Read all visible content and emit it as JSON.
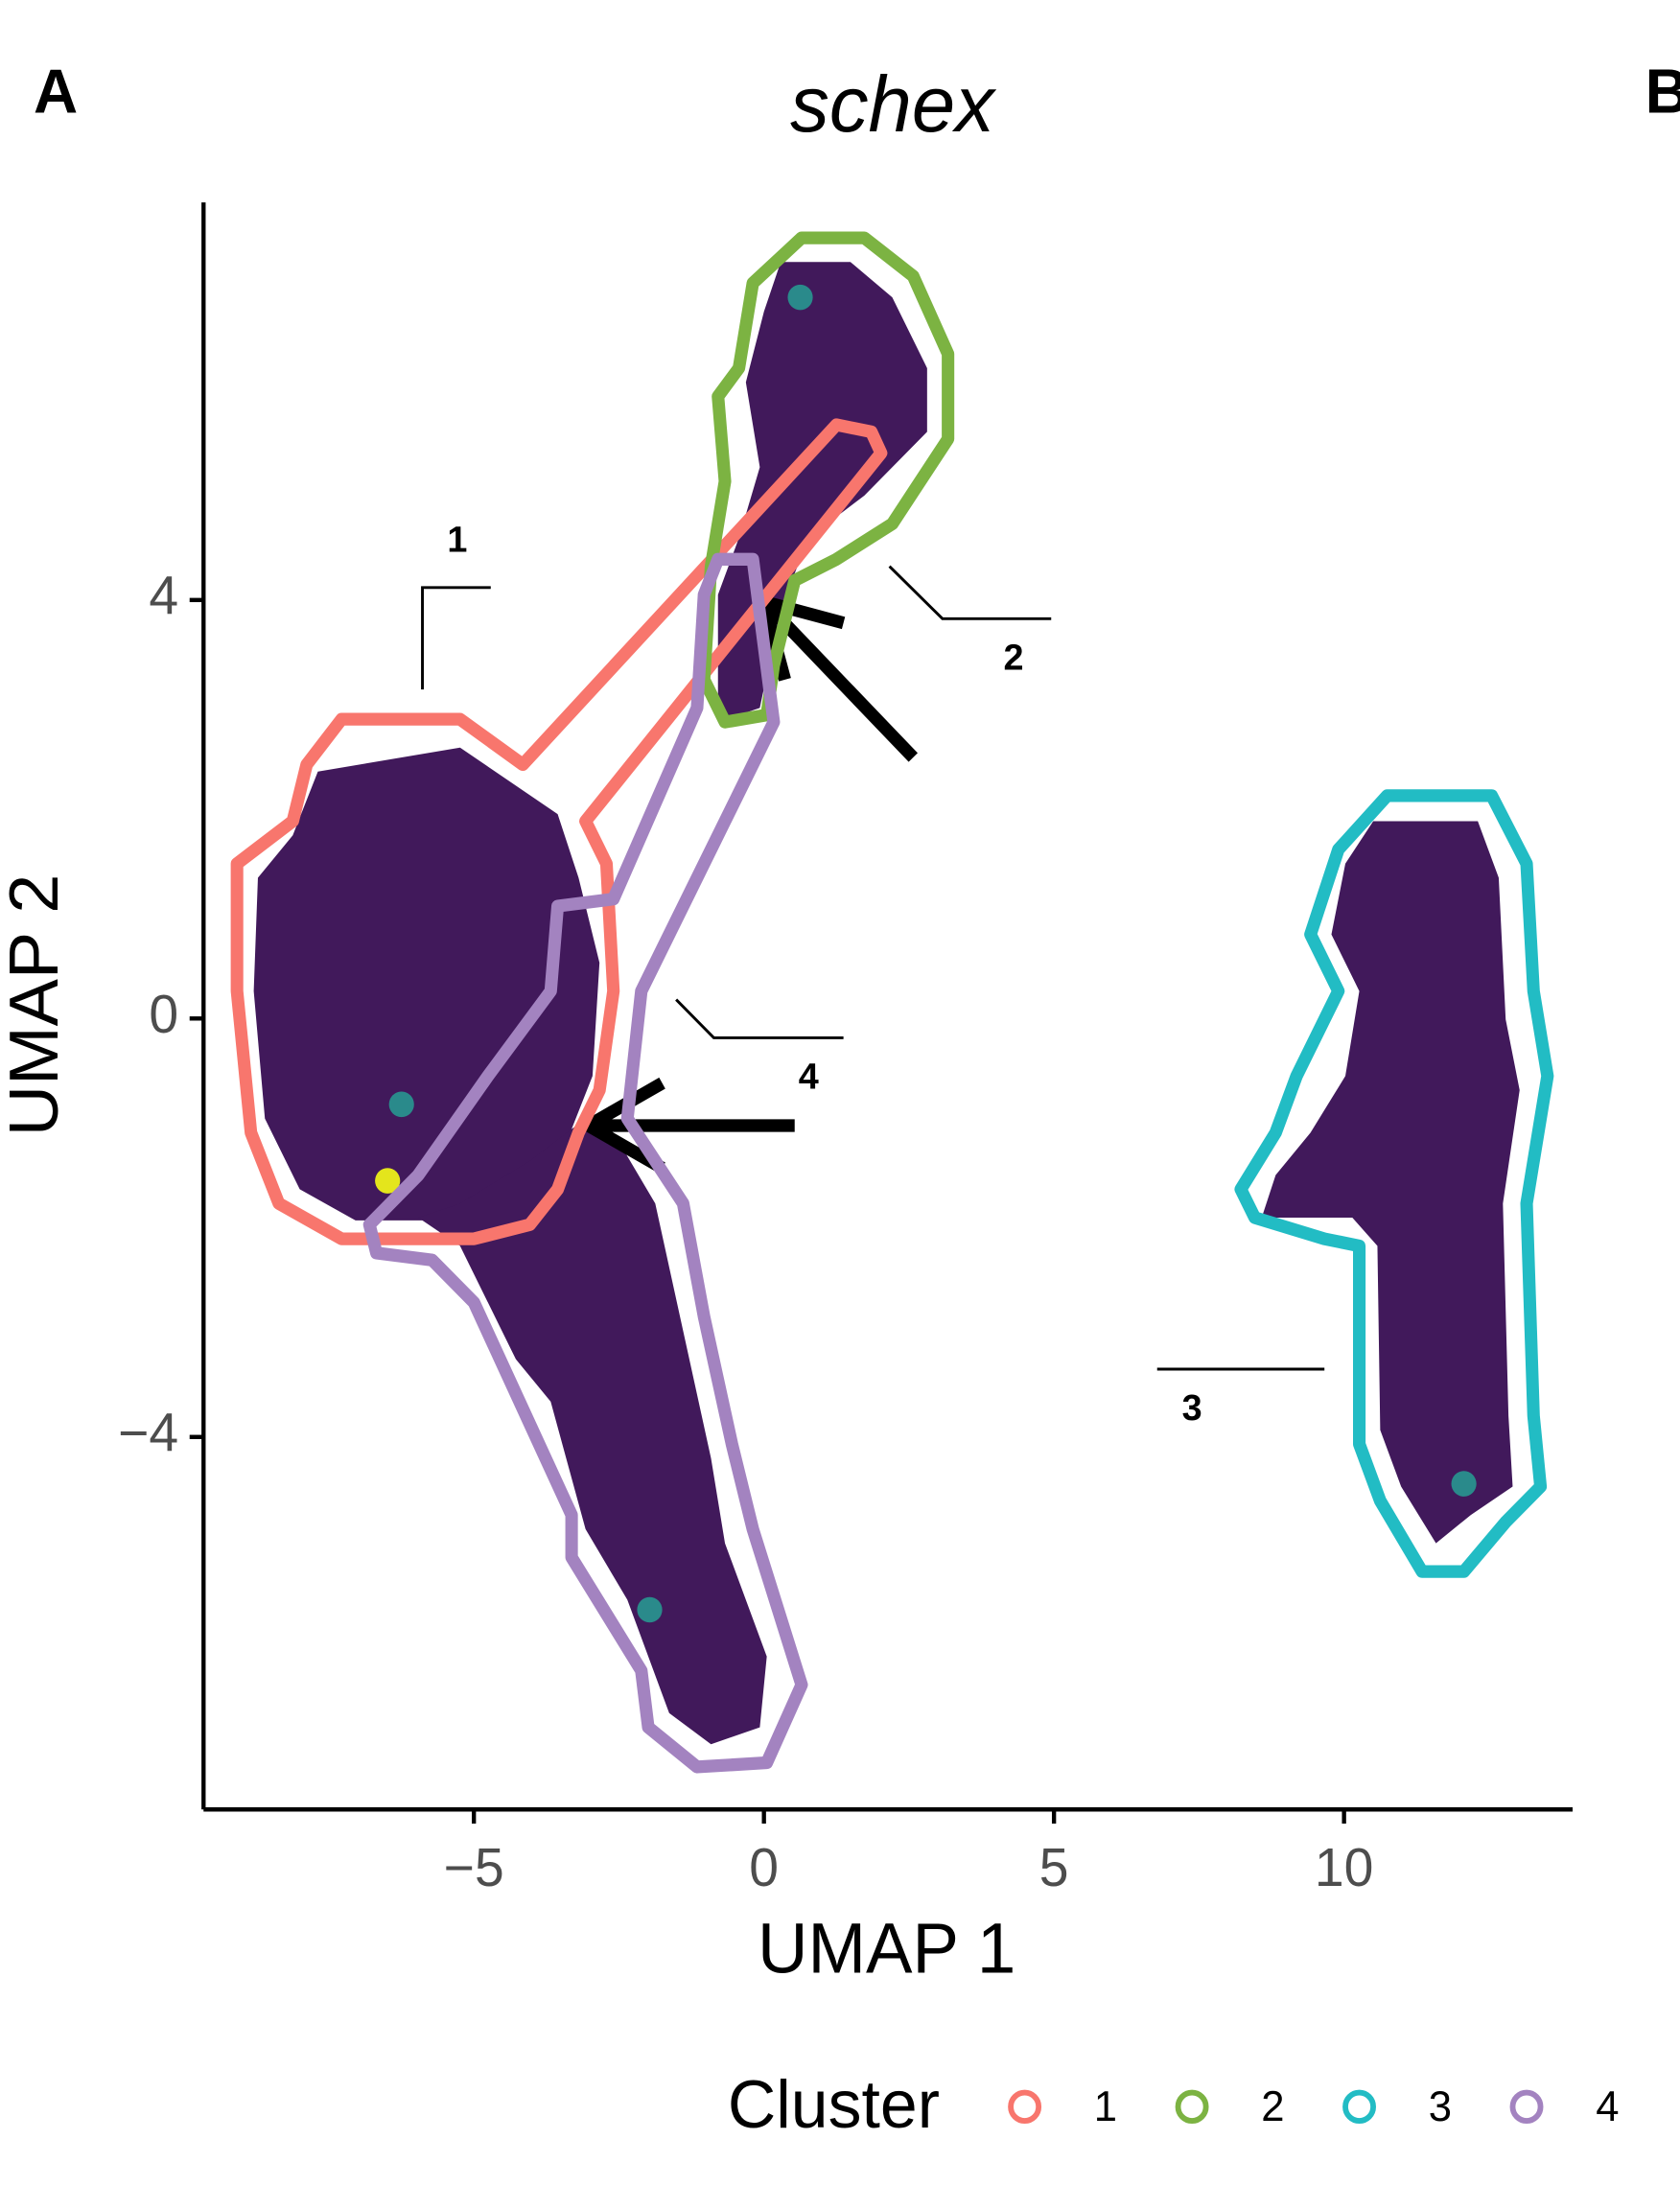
{
  "chart_data": {
    "type": "hexbin",
    "panel_label": "A",
    "next_panel_label": "B",
    "title": "schex",
    "x_label": "UMAP 1",
    "y_label": "UMAP 2",
    "xlim": [
      -9.66,
      13.94
    ],
    "ylim": [
      -7.56,
      7.8
    ],
    "xticks": [
      {
        "value": -5,
        "label": "−5"
      },
      0,
      5,
      10
    ],
    "yticks": [
      {
        "value": -4,
        "label": "−4"
      },
      0,
      4
    ],
    "legend_title": "Cluster",
    "series": [
      {
        "name": "1",
        "color": "#f8766d"
      },
      {
        "name": "2",
        "color": "#7cb342"
      },
      {
        "name": "3",
        "color": "#22bcc4"
      },
      {
        "name": "4",
        "color": "#a383c0"
      }
    ],
    "annotations": [
      "1",
      "2",
      "4",
      "3"
    ]
  }
}
